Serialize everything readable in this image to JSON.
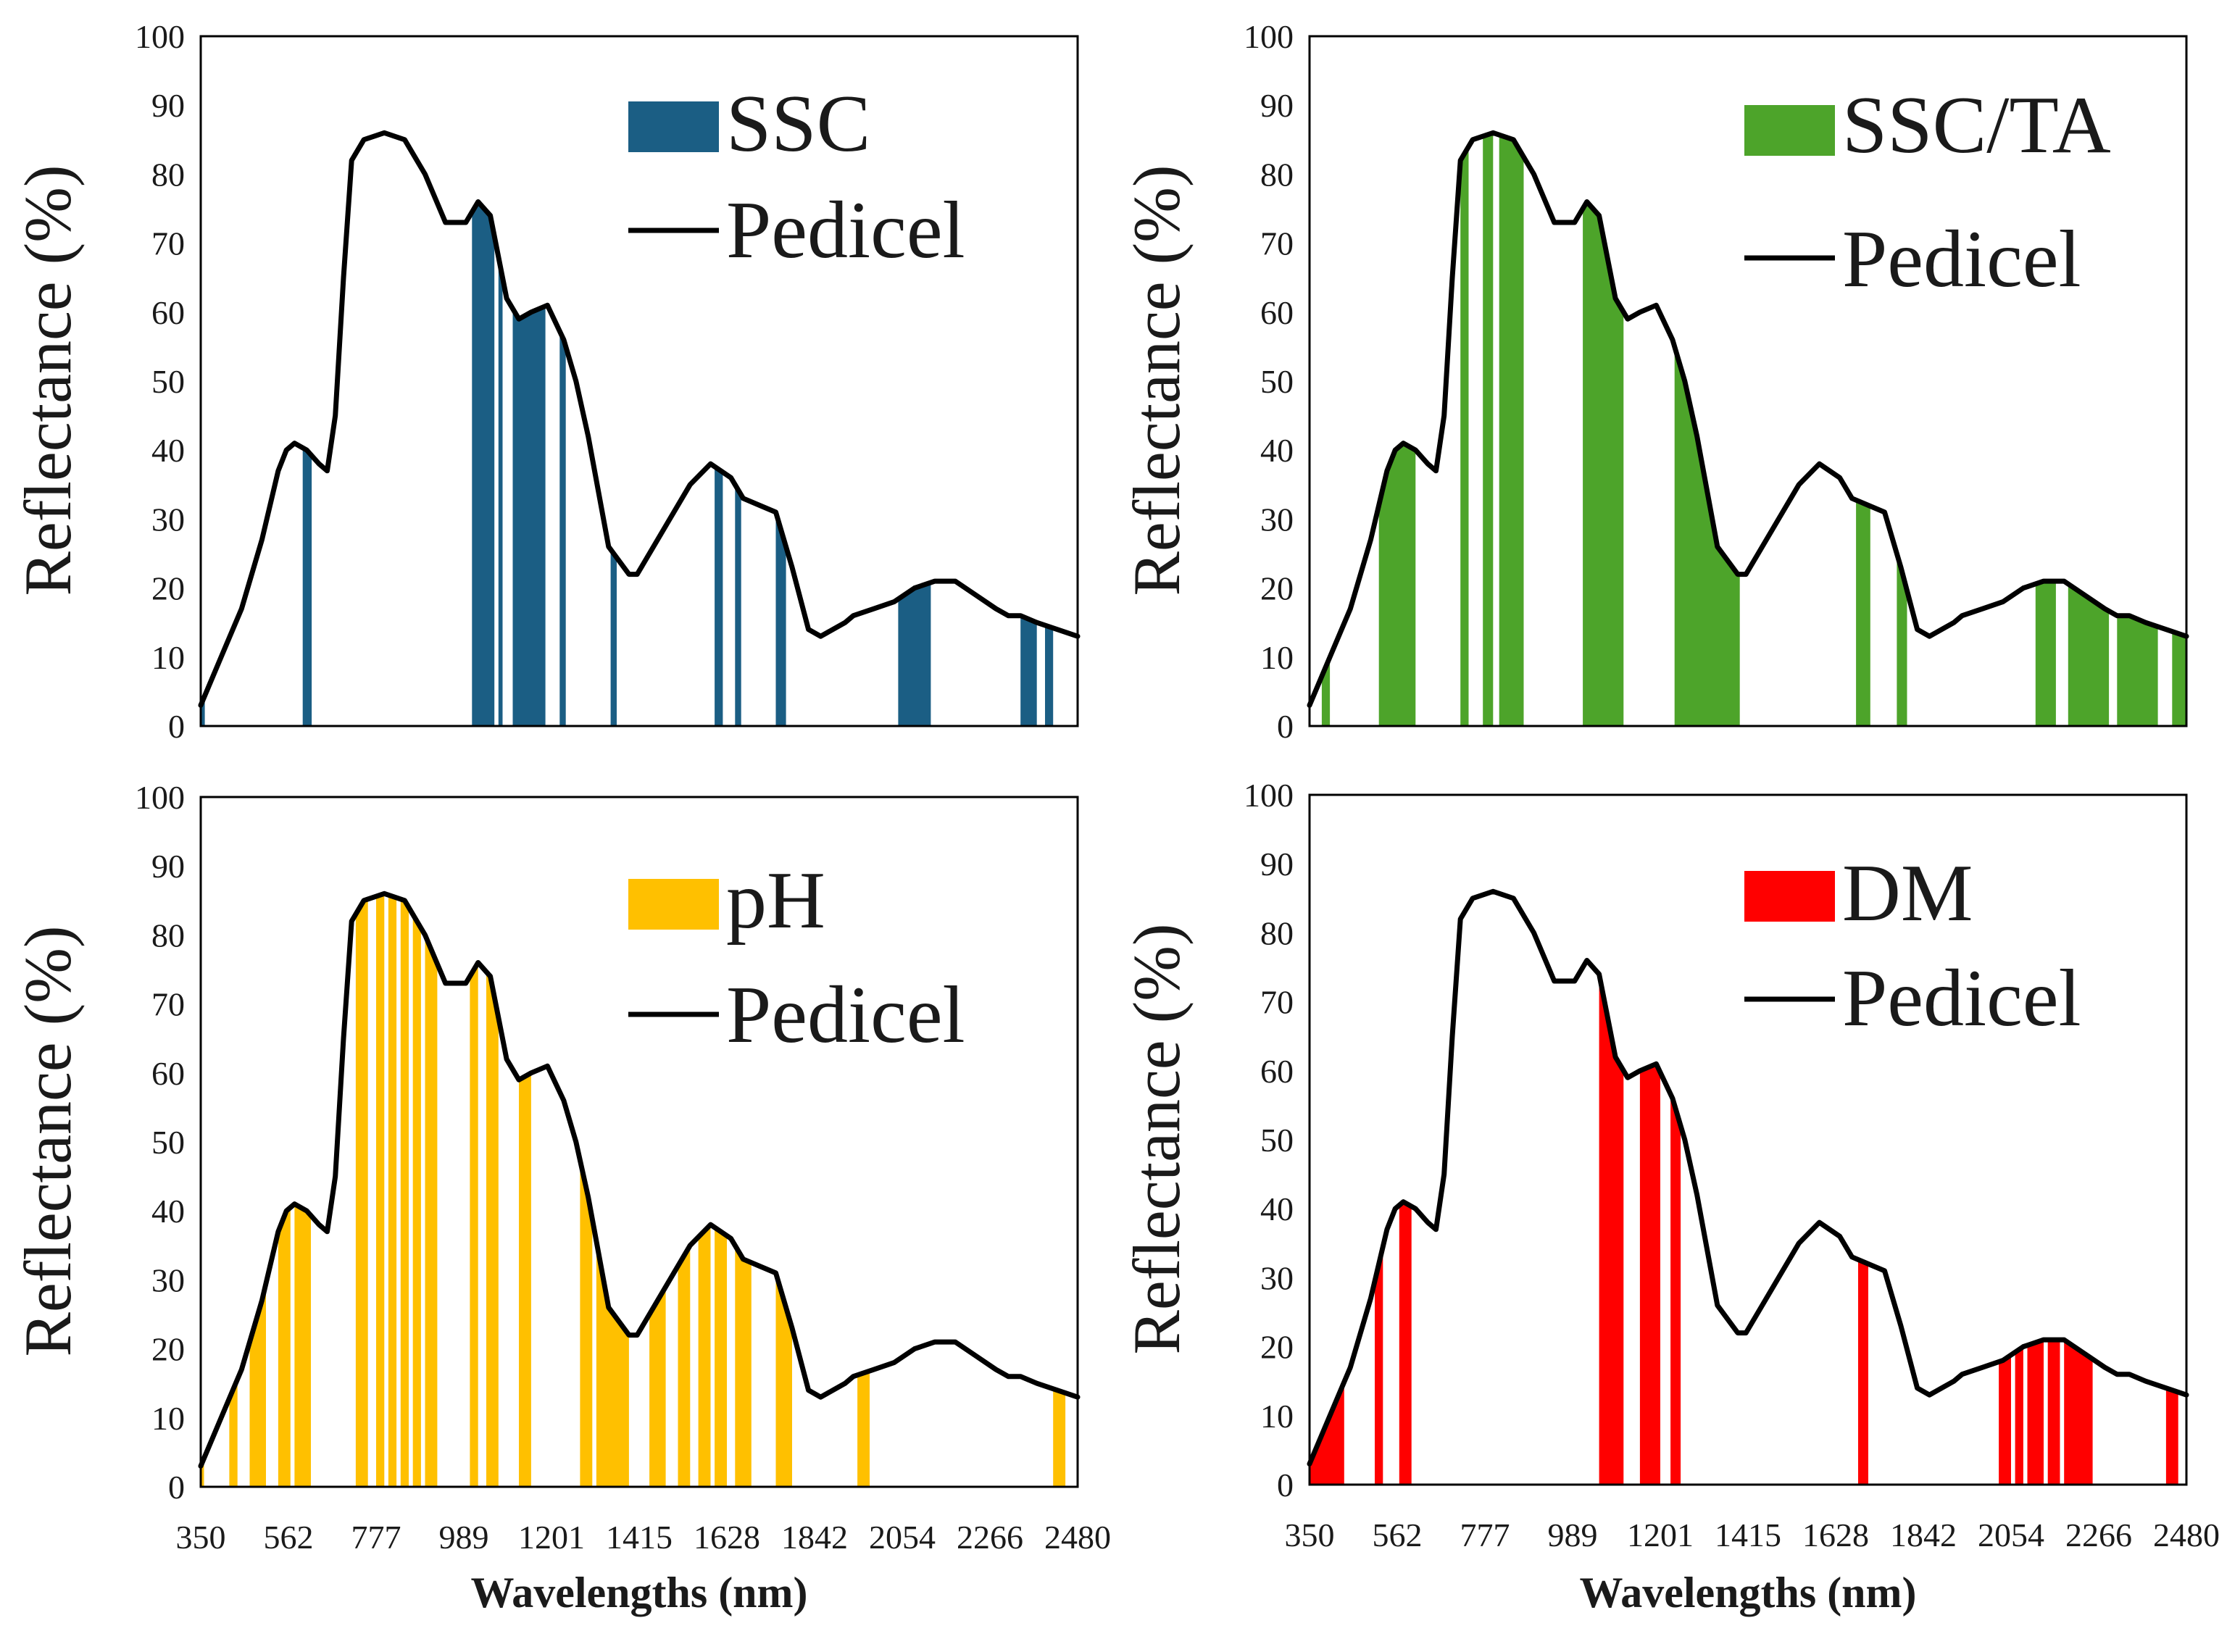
{
  "figure": {
    "xlabel": "Wavelengths (nm)",
    "line_name": "Pedicel",
    "line_color": "#000000"
  },
  "chart_data": [
    {
      "type": "bar",
      "title": "",
      "series_name": "SSC",
      "color": "#1b5e84",
      "xlabel": "Wavelengths (nm)",
      "ylabel": "Reflectance  (%)",
      "xlim": [
        350,
        2500
      ],
      "ylim": [
        0,
        100
      ],
      "xticks": [
        "350",
        "562",
        "777",
        "989",
        "1201",
        "1415",
        "1628",
        "1842",
        "2054",
        "2266",
        "2480"
      ],
      "yticks": [
        "0",
        "10",
        "20",
        "30",
        "40",
        "50",
        "60",
        "70",
        "80",
        "90",
        "100"
      ],
      "selected_bands": [
        [
          350,
          360
        ],
        [
          600,
          622
        ],
        [
          1015,
          1070
        ],
        [
          1080,
          1090
        ],
        [
          1115,
          1195
        ],
        [
          1230,
          1245
        ],
        [
          1355,
          1370
        ],
        [
          1610,
          1630
        ],
        [
          1660,
          1675
        ],
        [
          1760,
          1785
        ],
        [
          2060,
          2140
        ],
        [
          2360,
          2400
        ],
        [
          2420,
          2440
        ]
      ],
      "pedicel": {
        "wavelength": [
          350,
          400,
          450,
          500,
          540,
          560,
          580,
          610,
          640,
          660,
          680,
          700,
          720,
          750,
          800,
          850,
          900,
          950,
          1000,
          1030,
          1060,
          1100,
          1130,
          1160,
          1200,
          1240,
          1270,
          1300,
          1350,
          1400,
          1420,
          1450,
          1500,
          1550,
          1600,
          1650,
          1680,
          1720,
          1760,
          1800,
          1840,
          1870,
          1900,
          1930,
          1950,
          2000,
          2050,
          2100,
          2150,
          2200,
          2250,
          2300,
          2330,
          2360,
          2400,
          2450,
          2500
        ],
        "reflectance": [
          3,
          10,
          17,
          27,
          37,
          40,
          41,
          40,
          38,
          37,
          45,
          65,
          82,
          85,
          86,
          85,
          80,
          73,
          73,
          76,
          74,
          62,
          59,
          60,
          61,
          56,
          50,
          42,
          26,
          22,
          22,
          25,
          30,
          35,
          38,
          36,
          33,
          32,
          31,
          23,
          14,
          13,
          14,
          15,
          16,
          17,
          18,
          20,
          21,
          21,
          19,
          17,
          16,
          16,
          15,
          14,
          13
        ]
      }
    },
    {
      "type": "bar",
      "title": "",
      "series_name": "SSC/TA",
      "color": "#4da42a",
      "xlabel": "Wavelengths (nm)",
      "ylabel": "Reflectance  (%)",
      "xlim": [
        350,
        2500
      ],
      "ylim": [
        0,
        100
      ],
      "xticks": [
        "350",
        "562",
        "777",
        "989",
        "1201",
        "1415",
        "1628",
        "1842",
        "2054",
        "2266",
        "2480"
      ],
      "yticks": [
        "0",
        "10",
        "20",
        "30",
        "40",
        "50",
        "60",
        "70",
        "80",
        "90",
        "100"
      ],
      "selected_bands": [
        [
          380,
          400
        ],
        [
          520,
          610
        ],
        [
          720,
          740
        ],
        [
          775,
          800
        ],
        [
          815,
          875
        ],
        [
          1020,
          1120
        ],
        [
          1245,
          1405
        ],
        [
          1690,
          1725
        ],
        [
          1790,
          1815
        ],
        [
          2130,
          2180
        ],
        [
          2210,
          2310
        ],
        [
          2330,
          2430
        ],
        [
          2465,
          2500
        ]
      ],
      "pedicel": {
        "wavelength": [
          350,
          400,
          450,
          500,
          540,
          560,
          580,
          610,
          640,
          660,
          680,
          700,
          720,
          750,
          800,
          850,
          900,
          950,
          1000,
          1030,
          1060,
          1100,
          1130,
          1160,
          1200,
          1240,
          1270,
          1300,
          1350,
          1400,
          1420,
          1450,
          1500,
          1550,
          1600,
          1650,
          1680,
          1720,
          1760,
          1800,
          1840,
          1870,
          1900,
          1930,
          1950,
          2000,
          2050,
          2100,
          2150,
          2200,
          2250,
          2300,
          2330,
          2360,
          2400,
          2450,
          2500
        ],
        "reflectance": [
          3,
          10,
          17,
          27,
          37,
          40,
          41,
          40,
          38,
          37,
          45,
          65,
          82,
          85,
          86,
          85,
          80,
          73,
          73,
          76,
          74,
          62,
          59,
          60,
          61,
          56,
          50,
          42,
          26,
          22,
          22,
          25,
          30,
          35,
          38,
          36,
          33,
          32,
          31,
          23,
          14,
          13,
          14,
          15,
          16,
          17,
          18,
          20,
          21,
          21,
          19,
          17,
          16,
          16,
          15,
          14,
          13
        ]
      }
    },
    {
      "type": "bar",
      "title": "",
      "series_name": "pH",
      "color": "#ffc000",
      "xlabel": "Wavelengths (nm)",
      "ylabel": "Reflectance  (%)",
      "xlim": [
        350,
        2500
      ],
      "ylim": [
        0,
        100
      ],
      "xticks": [
        "350",
        "562",
        "777",
        "989",
        "1201",
        "1415",
        "1628",
        "1842",
        "2054",
        "2266",
        "2480"
      ],
      "yticks": [
        "0",
        "10",
        "20",
        "30",
        "40",
        "50",
        "60",
        "70",
        "80",
        "90",
        "100"
      ],
      "selected_bands": [
        [
          350,
          358
        ],
        [
          420,
          440
        ],
        [
          470,
          510
        ],
        [
          540,
          570
        ],
        [
          580,
          620
        ],
        [
          730,
          760
        ],
        [
          780,
          800
        ],
        [
          810,
          830
        ],
        [
          840,
          860
        ],
        [
          870,
          890
        ],
        [
          900,
          930
        ],
        [
          1010,
          1030
        ],
        [
          1050,
          1080
        ],
        [
          1130,
          1160
        ],
        [
          1280,
          1310
        ],
        [
          1320,
          1400
        ],
        [
          1450,
          1490
        ],
        [
          1520,
          1550
        ],
        [
          1570,
          1600
        ],
        [
          1610,
          1640
        ],
        [
          1660,
          1700
        ],
        [
          1760,
          1800
        ],
        [
          1960,
          1990
        ],
        [
          2440,
          2470
        ]
      ],
      "pedicel": {
        "wavelength": [
          350,
          400,
          450,
          500,
          540,
          560,
          580,
          610,
          640,
          660,
          680,
          700,
          720,
          750,
          800,
          850,
          900,
          950,
          1000,
          1030,
          1060,
          1100,
          1130,
          1160,
          1200,
          1240,
          1270,
          1300,
          1350,
          1400,
          1420,
          1450,
          1500,
          1550,
          1600,
          1650,
          1680,
          1720,
          1760,
          1800,
          1840,
          1870,
          1900,
          1930,
          1950,
          2000,
          2050,
          2100,
          2150,
          2200,
          2250,
          2300,
          2330,
          2360,
          2400,
          2450,
          2500
        ],
        "reflectance": [
          3,
          10,
          17,
          27,
          37,
          40,
          41,
          40,
          38,
          37,
          45,
          65,
          82,
          85,
          86,
          85,
          80,
          73,
          73,
          76,
          74,
          62,
          59,
          60,
          61,
          56,
          50,
          42,
          26,
          22,
          22,
          25,
          30,
          35,
          38,
          36,
          33,
          32,
          31,
          23,
          14,
          13,
          14,
          15,
          16,
          17,
          18,
          20,
          21,
          21,
          19,
          17,
          16,
          16,
          15,
          14,
          13
        ]
      }
    },
    {
      "type": "bar",
      "title": "",
      "series_name": "DM",
      "color": "#ff0000",
      "xlabel": "Wavelengths (nm)",
      "ylabel": "Reflectance  (%)",
      "xlim": [
        350,
        2500
      ],
      "ylim": [
        0,
        100
      ],
      "xticks": [
        "350",
        "562",
        "777",
        "989",
        "1201",
        "1415",
        "1628",
        "1842",
        "2054",
        "2266",
        "2480"
      ],
      "yticks": [
        "0",
        "10",
        "20",
        "30",
        "40",
        "50",
        "60",
        "70",
        "80",
        "90",
        "100"
      ],
      "selected_bands": [
        [
          350,
          435
        ],
        [
          510,
          530
        ],
        [
          570,
          600
        ],
        [
          1060,
          1120
        ],
        [
          1160,
          1210
        ],
        [
          1235,
          1260
        ],
        [
          1695,
          1720
        ],
        [
          2040,
          2070
        ],
        [
          2080,
          2100
        ],
        [
          2110,
          2150
        ],
        [
          2160,
          2190
        ],
        [
          2200,
          2270
        ],
        [
          2450,
          2480
        ]
      ],
      "pedicel": {
        "wavelength": [
          350,
          400,
          450,
          500,
          540,
          560,
          580,
          610,
          640,
          660,
          680,
          700,
          720,
          750,
          800,
          850,
          900,
          950,
          1000,
          1030,
          1060,
          1100,
          1130,
          1160,
          1200,
          1240,
          1270,
          1300,
          1350,
          1400,
          1420,
          1450,
          1500,
          1550,
          1600,
          1650,
          1680,
          1720,
          1760,
          1800,
          1840,
          1870,
          1900,
          1930,
          1950,
          2000,
          2050,
          2100,
          2150,
          2200,
          2250,
          2300,
          2330,
          2360,
          2400,
          2450,
          2500
        ],
        "reflectance": [
          3,
          10,
          17,
          27,
          37,
          40,
          41,
          40,
          38,
          37,
          45,
          65,
          82,
          85,
          86,
          85,
          80,
          73,
          73,
          76,
          74,
          62,
          59,
          60,
          61,
          56,
          50,
          42,
          26,
          22,
          22,
          25,
          30,
          35,
          38,
          36,
          33,
          32,
          31,
          23,
          14,
          13,
          14,
          15,
          16,
          17,
          18,
          20,
          21,
          21,
          19,
          17,
          16,
          16,
          15,
          14,
          13
        ]
      }
    }
  ]
}
